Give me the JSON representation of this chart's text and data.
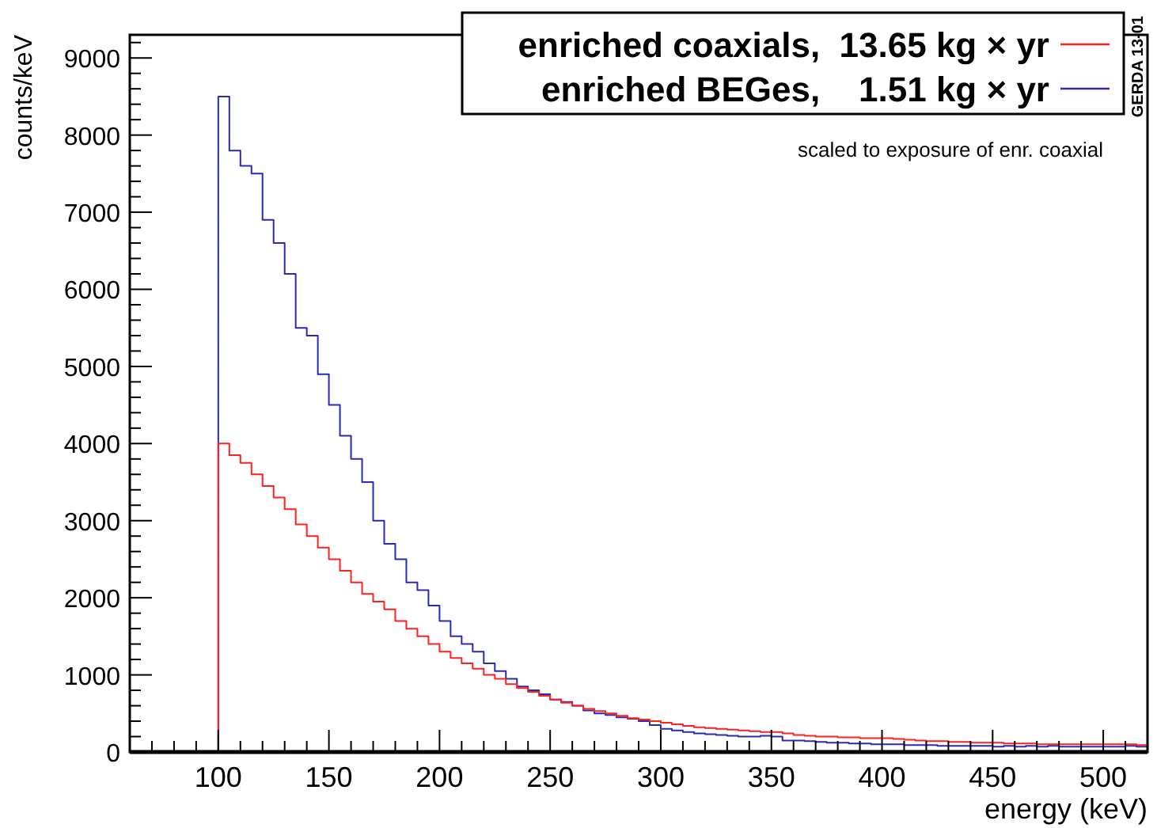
{
  "chart_data": {
    "type": "histogram",
    "xlabel": "energy (keV)",
    "ylabel": "counts/keV",
    "bins": [
      60,
      65,
      70,
      75,
      80,
      85,
      90,
      95,
      100,
      105,
      110,
      115,
      120,
      125,
      130,
      135,
      140,
      145,
      150,
      155,
      160,
      165,
      170,
      175,
      180,
      185,
      190,
      195,
      200,
      205,
      210,
      215,
      220,
      225,
      230,
      235,
      240,
      245,
      250,
      255,
      260,
      265,
      270,
      275,
      280,
      285,
      290,
      295,
      300,
      305,
      310,
      315,
      320,
      325,
      330,
      335,
      340,
      345,
      350,
      355,
      360,
      365,
      370,
      375,
      380,
      385,
      390,
      395,
      400,
      405,
      410,
      415,
      420,
      425,
      430,
      435,
      440,
      445,
      450,
      455,
      460,
      465,
      470,
      475,
      480,
      485,
      490,
      495,
      500,
      505,
      510,
      515,
      520
    ],
    "series": [
      {
        "name": "enriched BEGes,    1.51 kg × yr",
        "color": "#2a2ab4",
        "values": [
          0,
          0,
          0,
          0,
          0,
          0,
          0,
          0,
          8500,
          7800,
          7600,
          7500,
          6900,
          6600,
          6200,
          5500,
          5400,
          4900,
          4500,
          4100,
          3800,
          3500,
          3000,
          2700,
          2500,
          2200,
          2100,
          1900,
          1700,
          1500,
          1400,
          1300,
          1150,
          1050,
          950,
          850,
          800,
          750,
          680,
          650,
          600,
          540,
          500,
          480,
          450,
          430,
          400,
          350,
          300,
          280,
          260,
          240,
          230,
          220,
          210,
          200,
          200,
          210,
          200,
          150,
          150,
          140,
          130,
          120,
          120,
          110,
          110,
          100,
          100,
          100,
          90,
          90,
          90,
          80,
          80,
          80,
          80,
          80,
          70,
          80,
          70,
          80,
          70,
          80,
          70,
          70,
          70,
          70,
          70,
          70,
          80,
          70
        ]
      },
      {
        "name": "enriched coaxials,  13.65 kg × yr",
        "color": "#ff2020",
        "values": [
          0,
          0,
          0,
          0,
          0,
          0,
          0,
          0,
          4000,
          3850,
          3750,
          3600,
          3450,
          3300,
          3150,
          2950,
          2800,
          2650,
          2500,
          2350,
          2200,
          2050,
          1950,
          1850,
          1700,
          1600,
          1500,
          1400,
          1300,
          1220,
          1150,
          1080,
          1000,
          950,
          880,
          830,
          780,
          730,
          680,
          640,
          600,
          560,
          530,
          500,
          470,
          440,
          420,
          400,
          380,
          360,
          340,
          320,
          310,
          300,
          290,
          280,
          270,
          260,
          260,
          240,
          220,
          210,
          200,
          200,
          190,
          190,
          180,
          180,
          180,
          170,
          160,
          150,
          140,
          140,
          130,
          130,
          120,
          120,
          120,
          110,
          110,
          110,
          100,
          100,
          100,
          100,
          100,
          100,
          100,
          100,
          100,
          90
        ]
      }
    ],
    "xlim": [
      60,
      520
    ],
    "xticks": [
      100,
      150,
      200,
      250,
      300,
      350,
      400,
      450,
      500
    ],
    "ylim": [
      0,
      9300
    ],
    "yticks": [
      0,
      1000,
      2000,
      3000,
      4000,
      5000,
      6000,
      7000,
      8000,
      9000
    ],
    "legend": "top right",
    "grid": false,
    "annotations": [
      "scaled to exposure of enr. coaxial",
      "GERDA 13-01"
    ]
  }
}
